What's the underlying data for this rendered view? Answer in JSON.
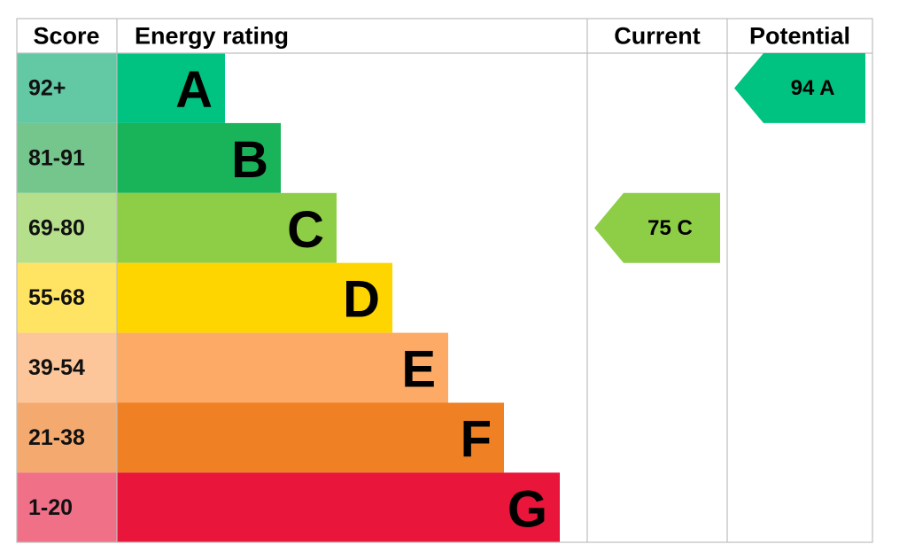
{
  "chart_data": {
    "type": "bar",
    "headers": {
      "score": "Score",
      "rating": "Energy rating",
      "current": "Current",
      "potential": "Potential"
    },
    "bands": [
      {
        "range": "92+",
        "letter": "A",
        "min": 92,
        "bar_color": "#00c281",
        "score_color": "#63c8a4"
      },
      {
        "range": "81-91",
        "letter": "B",
        "min": 81,
        "bar_color": "#19b459",
        "score_color": "#74c68c"
      },
      {
        "range": "69-80",
        "letter": "C",
        "min": 69,
        "bar_color": "#8dce46",
        "score_color": "#b5df8b"
      },
      {
        "range": "55-68",
        "letter": "D",
        "min": 55,
        "bar_color": "#ffd500",
        "score_color": "#ffe463"
      },
      {
        "range": "39-54",
        "letter": "E",
        "min": 39,
        "bar_color": "#fcaa65",
        "score_color": "#fdc69a"
      },
      {
        "range": "21-38",
        "letter": "F",
        "min": 21,
        "bar_color": "#ef8023",
        "score_color": "#f4aa6f"
      },
      {
        "range": "1-20",
        "letter": "G",
        "min": 1,
        "bar_color": "#e9153b",
        "score_color": "#f07088"
      }
    ],
    "current": {
      "value": 75,
      "letter": "C",
      "label": "75  C",
      "color": "#8dce46"
    },
    "potential": {
      "value": 94,
      "letter": "A",
      "label": "94  A",
      "color": "#00c281"
    }
  }
}
